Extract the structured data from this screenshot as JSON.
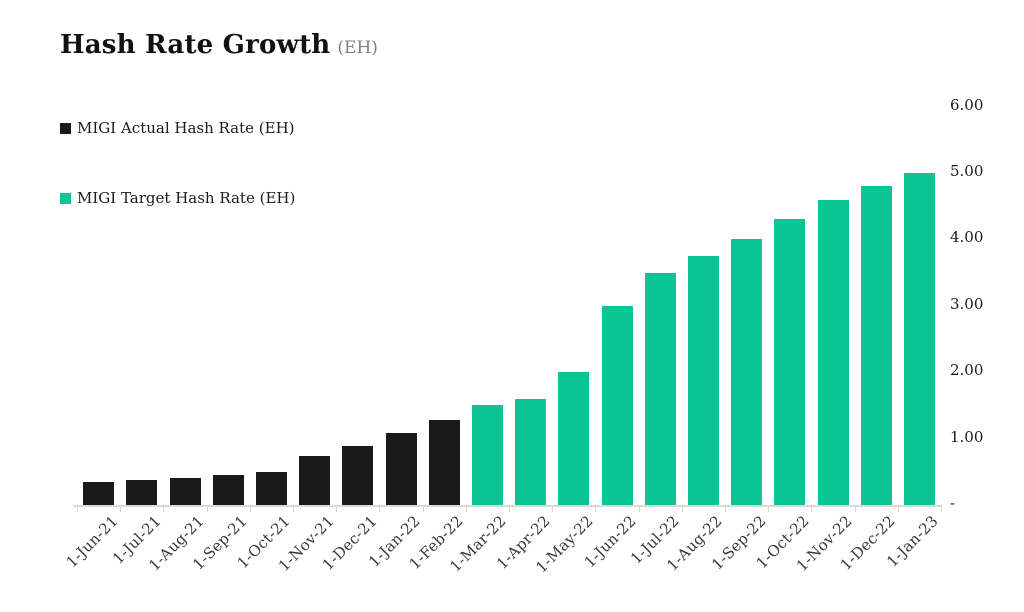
{
  "title": {
    "text": "Hash Rate Growth",
    "unit": "(EH)"
  },
  "colors": {
    "actual": "#1a1a1a",
    "target": "#0bc694",
    "axis": "#d9d9d9",
    "title_unit": "#808080"
  },
  "legend": [
    {
      "label": "MIGI Actual Hash Rate (EH)",
      "color": "#1a1a1a"
    },
    {
      "label": "MIGI Target Hash Rate (EH)",
      "color": "#0bc694"
    }
  ],
  "chart_data": {
    "type": "bar",
    "title": "Hash Rate Growth (EH)",
    "xlabel": "",
    "ylabel": "",
    "ylim": [
      0,
      6
    ],
    "grid": false,
    "legend_position": "upper-left",
    "categories": [
      "1-Jun-21",
      "1-Jul-21",
      "1-Aug-21",
      "1-Sep-21",
      "1-Oct-21",
      "1-Nov-21",
      "1-Dec-21",
      "1-Jan-22",
      "1-Feb-22",
      "1-Mar-22",
      "1-Apr-22",
      "1-May-22",
      "1-Jun-22",
      "1-Jul-22",
      "1-Aug-22",
      "1-Sep-22",
      "1-Oct-22",
      "1-Nov-22",
      "1-Dec-22",
      "1-Jan-23"
    ],
    "series": [
      {
        "name": "MIGI Actual Hash Rate (EH)",
        "color": "#1a1a1a",
        "values": [
          0.34,
          0.38,
          0.41,
          0.45,
          0.49,
          0.74,
          0.89,
          1.09,
          1.28,
          null,
          null,
          null,
          null,
          null,
          null,
          null,
          null,
          null,
          null,
          null
        ]
      },
      {
        "name": "MIGI Target Hash Rate (EH)",
        "color": "#0bc694",
        "values": [
          null,
          null,
          null,
          null,
          null,
          null,
          null,
          null,
          null,
          1.5,
          1.6,
          2.0,
          3.0,
          3.5,
          3.75,
          4.0,
          4.3,
          4.6,
          4.8,
          5.0
        ]
      }
    ],
    "yticks": [
      {
        "value": 6,
        "label": "6.00"
      },
      {
        "value": 5,
        "label": "5.00"
      },
      {
        "value": 4,
        "label": "4.00"
      },
      {
        "value": 3,
        "label": "3.00"
      },
      {
        "value": 2,
        "label": "2.00"
      },
      {
        "value": 1,
        "label": "1.00"
      },
      {
        "value": 0,
        "label": "-"
      }
    ]
  }
}
